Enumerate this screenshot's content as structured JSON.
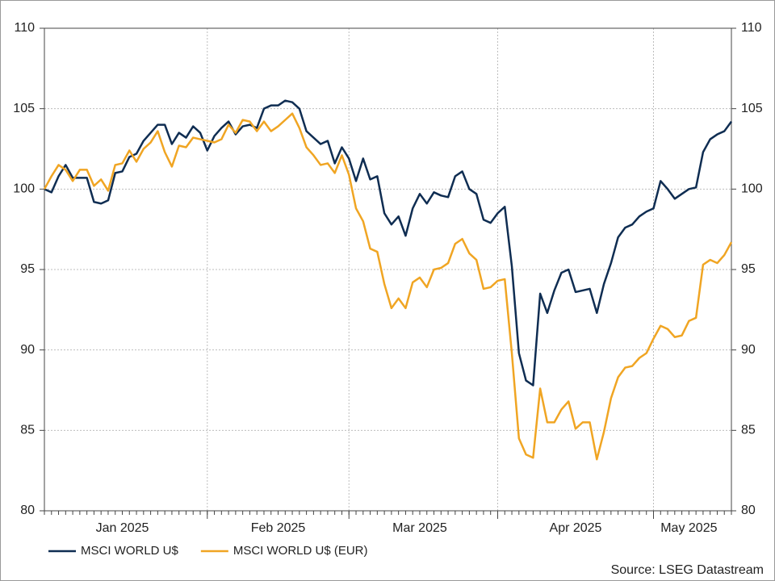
{
  "chart_data": {
    "type": "line",
    "categories": [
      null,
      null,
      null,
      null,
      null,
      null,
      null,
      null,
      null,
      null,
      null,
      "Jan 2025",
      null,
      null,
      null,
      null,
      null,
      null,
      null,
      null,
      null,
      null,
      null,
      null,
      null,
      null,
      null,
      null,
      null,
      null,
      null,
      null,
      null,
      "Feb 2025",
      null,
      null,
      null,
      null,
      null,
      null,
      null,
      null,
      null,
      null,
      null,
      null,
      null,
      null,
      null,
      null,
      null,
      null,
      null,
      "Mar 2025",
      null,
      null,
      null,
      null,
      null,
      null,
      null,
      null,
      null,
      null,
      null,
      null,
      null,
      null,
      null,
      null,
      null,
      null,
      null,
      null,
      null,
      "Apr 2025",
      null,
      null,
      null,
      null,
      null,
      null,
      null,
      null,
      null,
      null,
      null,
      null,
      null,
      null,
      null,
      "May 2025",
      null,
      null,
      null,
      null,
      null,
      null
    ],
    "series": [
      {
        "name": "MSCI WORLD U$",
        "color": "#0f2d52",
        "values": [
          100.0,
          99.8,
          100.8,
          101.5,
          100.7,
          100.7,
          100.7,
          99.2,
          99.1,
          99.3,
          101.0,
          101.1,
          102.0,
          102.2,
          103.0,
          103.5,
          104.0,
          104.0,
          102.8,
          103.5,
          103.2,
          103.9,
          103.5,
          102.4,
          103.3,
          103.8,
          104.2,
          103.4,
          103.9,
          104.0,
          103.8,
          105.0,
          105.2,
          105.2,
          105.5,
          105.4,
          105.0,
          103.6,
          103.2,
          102.8,
          103.0,
          101.6,
          102.6,
          101.9,
          100.5,
          101.9,
          100.6,
          100.8,
          98.5,
          97.8,
          98.3,
          97.1,
          98.8,
          99.7,
          99.1,
          99.8,
          99.6,
          99.5,
          100.8,
          101.1,
          100.0,
          99.7,
          98.1,
          97.9,
          98.5,
          98.9,
          95.2,
          89.8,
          88.1,
          87.8,
          93.5,
          92.3,
          93.7,
          94.8,
          95.0,
          93.6,
          93.7,
          93.8,
          92.3,
          94.1,
          95.4,
          97.0,
          97.6,
          97.8,
          98.3,
          98.6,
          98.8,
          100.5,
          100.0,
          99.4,
          99.7,
          100.0,
          100.1,
          102.3,
          103.1,
          103.4,
          103.6,
          104.2
        ]
      },
      {
        "name": "MSCI WORLD U$ (EUR)",
        "color": "#f0a523",
        "values": [
          100.0,
          100.8,
          101.5,
          101.2,
          100.5,
          101.2,
          101.2,
          100.2,
          100.6,
          99.9,
          101.5,
          101.6,
          102.4,
          101.7,
          102.5,
          102.9,
          103.6,
          102.3,
          101.4,
          102.7,
          102.6,
          103.2,
          103.1,
          103.0,
          102.9,
          103.1,
          104.0,
          103.5,
          104.3,
          104.2,
          103.6,
          104.2,
          103.6,
          103.9,
          104.3,
          104.7,
          103.8,
          102.6,
          102.1,
          101.5,
          101.6,
          101.0,
          102.1,
          100.9,
          98.8,
          98.0,
          96.3,
          96.1,
          94.1,
          92.6,
          93.2,
          92.6,
          94.2,
          94.5,
          93.9,
          95.0,
          95.1,
          95.4,
          96.6,
          96.9,
          96.0,
          95.6,
          93.8,
          93.9,
          94.3,
          94.4,
          89.8,
          84.5,
          83.5,
          83.3,
          87.6,
          85.5,
          85.5,
          86.3,
          86.8,
          85.1,
          85.5,
          85.5,
          83.2,
          84.9,
          87.0,
          88.3,
          88.9,
          89.0,
          89.5,
          89.8,
          90.7,
          91.5,
          91.3,
          90.8,
          90.9,
          91.8,
          92.0,
          95.3,
          95.6,
          95.4,
          95.9,
          96.7
        ]
      }
    ],
    "ylim": [
      80,
      110
    ],
    "yticks": [
      80,
      85,
      90,
      95,
      100,
      105,
      110
    ],
    "y2lim": [
      80,
      110
    ],
    "y2ticks": [
      80,
      85,
      90,
      95,
      100,
      105,
      110
    ],
    "grid": true,
    "legend": "bottom-left",
    "source": "Source: LSEG Datastream"
  }
}
